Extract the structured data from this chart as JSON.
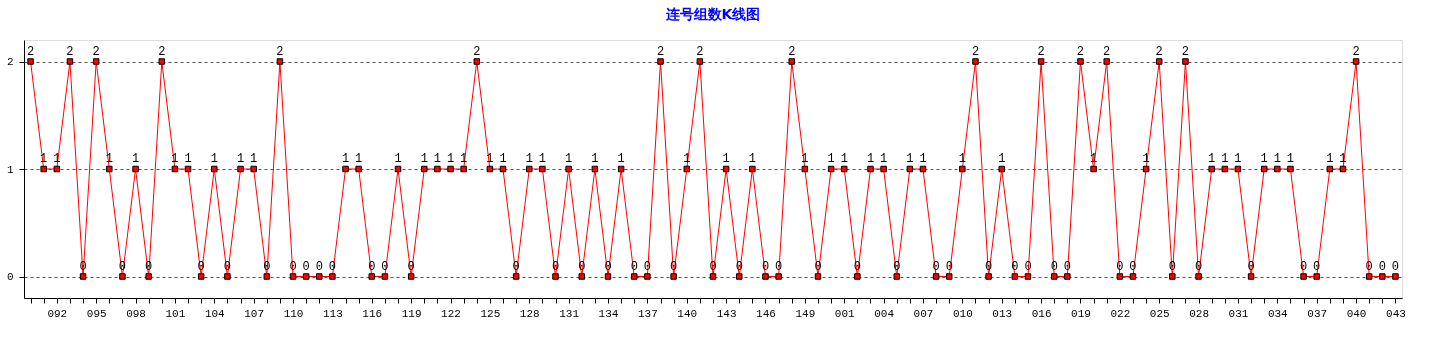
{
  "chart_data": {
    "type": "line",
    "title": "连号组数K线图",
    "categories": [
      null,
      null,
      "092",
      null,
      null,
      "095",
      null,
      null,
      "098",
      null,
      null,
      "101",
      null,
      null,
      "104",
      null,
      null,
      "107",
      null,
      null,
      "110",
      null,
      null,
      "113",
      null,
      null,
      "116",
      null,
      null,
      "119",
      null,
      null,
      "122",
      null,
      null,
      "125",
      null,
      null,
      "128",
      null,
      null,
      "131",
      null,
      null,
      "134",
      null,
      null,
      "137",
      null,
      null,
      "140",
      null,
      null,
      "143",
      null,
      null,
      "146",
      null,
      null,
      "149",
      null,
      null,
      "001",
      null,
      null,
      "004",
      null,
      null,
      "007",
      null,
      null,
      "010",
      null,
      null,
      "013",
      null,
      null,
      "016",
      null,
      null,
      "019",
      null,
      null,
      "022",
      null,
      null,
      "025",
      null,
      null,
      "028",
      null,
      null,
      "031",
      null,
      null,
      "034",
      null,
      null,
      "037",
      null,
      null,
      "040",
      null,
      null,
      "043"
    ],
    "series": [
      {
        "color": "#ff0000",
        "values": [
          2,
          1,
          1,
          2,
          0,
          2,
          1,
          0,
          1,
          0,
          2,
          1,
          1,
          0,
          1,
          0,
          1,
          1,
          0,
          2,
          0,
          0,
          0,
          0,
          1,
          1,
          0,
          0,
          1,
          0,
          1,
          1,
          1,
          1,
          2,
          1,
          1,
          0,
          1,
          1,
          0,
          1,
          0,
          1,
          0,
          1,
          0,
          0,
          2,
          0,
          1,
          2,
          0,
          1,
          0,
          1,
          0,
          0,
          2,
          1,
          0,
          1,
          1,
          0,
          1,
          1,
          0,
          1,
          1,
          0,
          0,
          1,
          2,
          0,
          1,
          0,
          0,
          2,
          0,
          0,
          2,
          1,
          2,
          0,
          0,
          1,
          2,
          0,
          2,
          0,
          1,
          1,
          1,
          0,
          1,
          1,
          1,
          0,
          0,
          1,
          1,
          2,
          0,
          0,
          0
        ]
      }
    ],
    "ylim": [
      -0.2,
      2.2
    ],
    "yticks": [
      0,
      1,
      2
    ],
    "grid": "y",
    "marker": "square",
    "line_style": "solid",
    "data_labels": true
  }
}
